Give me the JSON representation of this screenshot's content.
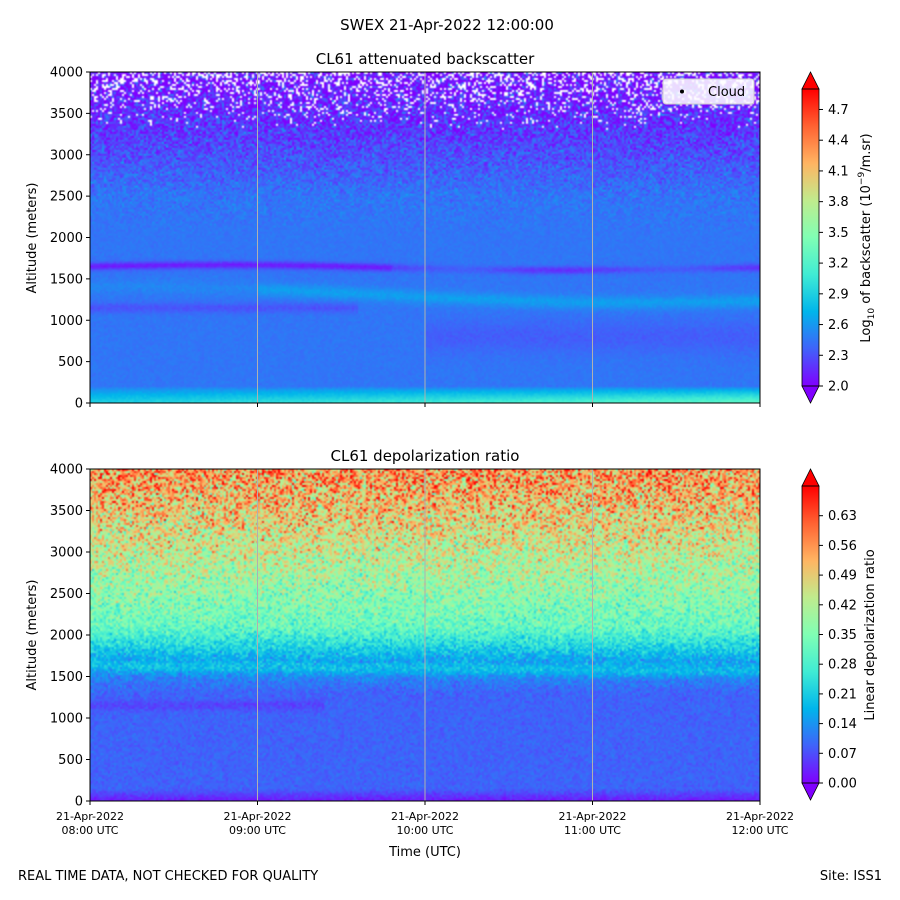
{
  "suptitle": "SWEX 21-Apr-2022 12:00:00",
  "footer": {
    "left": "REAL TIME DATA, NOT CHECKED FOR QUALITY",
    "right": "Site: ISS1"
  },
  "colors": {
    "rainbow": [
      "#8000ff",
      "#4062fa",
      "#00b5eb",
      "#40ecd4",
      "#80ffb4",
      "#c0eb8d",
      "#ffb462",
      "#ff6232",
      "#ff0000"
    ],
    "gridline": "#b0b0b0",
    "legend_bg": "#ffffff"
  },
  "chart_data": [
    {
      "type": "heatmap",
      "title": "CL61 attenuated backscatter",
      "xlabel": "",
      "ylabel": "Altitude (meters)",
      "ylim": [
        0,
        4000
      ],
      "yticks": [
        0,
        500,
        1000,
        1500,
        2000,
        2500,
        3000,
        3500,
        4000
      ],
      "xlim": [
        0,
        4
      ],
      "xtick_positions": [
        0,
        1,
        2,
        3,
        4
      ],
      "xtick_labels": [],
      "grid": "vertical",
      "legend": {
        "label": "Cloud",
        "location": "top-right"
      },
      "colorbar": {
        "label_pre": "Log",
        "label_sub": "10",
        "label_mid": " of backscatter (10",
        "label_sup": "−9",
        "label_post": "/m.sr)",
        "vmin": 2.0,
        "vmax": 4.9,
        "ticks": [
          2.0,
          2.3,
          2.6,
          2.9,
          3.2,
          3.5,
          3.8,
          4.1,
          4.4,
          4.7
        ],
        "tick_labels": [
          "2.0",
          "2.3",
          "2.6",
          "2.9",
          "3.2",
          "3.5",
          "3.8",
          "4.1",
          "4.4",
          "4.7"
        ],
        "extend": "both"
      },
      "field_description": {
        "surface_layer": {
          "alt_max": 200,
          "value_start": 2.9,
          "value_end": 3.3
        },
        "background_value": 2.45,
        "elevated_layer": {
          "alt_start": 1650,
          "alt_end": 1620,
          "value": 2.1
        },
        "secondary_layer": {
          "alt_start": 1350,
          "alt_end": 1250,
          "value": 2.7
        },
        "noise_onset_alt": 3000,
        "missing_data_above_alt": 3300
      }
    },
    {
      "type": "heatmap",
      "title": "CL61 depolarization ratio",
      "xlabel": "Time (UTC)",
      "ylabel": "Altitude (meters)",
      "ylim": [
        0,
        4000
      ],
      "yticks": [
        0,
        500,
        1000,
        1500,
        2000,
        2500,
        3000,
        3500,
        4000
      ],
      "xlim": [
        0,
        4
      ],
      "xtick_positions": [
        0,
        1,
        2,
        3,
        4
      ],
      "xtick_labels": [
        [
          "21-Apr-2022",
          "08:00 UTC"
        ],
        [
          "21-Apr-2022",
          "09:00 UTC"
        ],
        [
          "21-Apr-2022",
          "10:00 UTC"
        ],
        [
          "21-Apr-2022",
          "11:00 UTC"
        ],
        [
          "21-Apr-2022",
          "12:00 UTC"
        ]
      ],
      "grid": "vertical",
      "colorbar": {
        "label": "Linear depolarization ratio",
        "vmin": 0.0,
        "vmax": 0.7,
        "ticks": [
          0.0,
          0.07,
          0.14,
          0.21,
          0.28,
          0.35,
          0.42,
          0.49,
          0.56,
          0.63
        ],
        "tick_labels": [
          "0.00",
          "0.07",
          "0.14",
          "0.21",
          "0.28",
          "0.35",
          "0.42",
          "0.49",
          "0.56",
          "0.63"
        ],
        "extend": "both"
      },
      "field_description": {
        "near_surface_value": 0.02,
        "lower_value": 0.09,
        "layer_1500_value": 0.16,
        "transition_2000_value": 0.32,
        "upper_4000_value": 0.56,
        "noise_increasing_with_altitude": true
      }
    }
  ]
}
